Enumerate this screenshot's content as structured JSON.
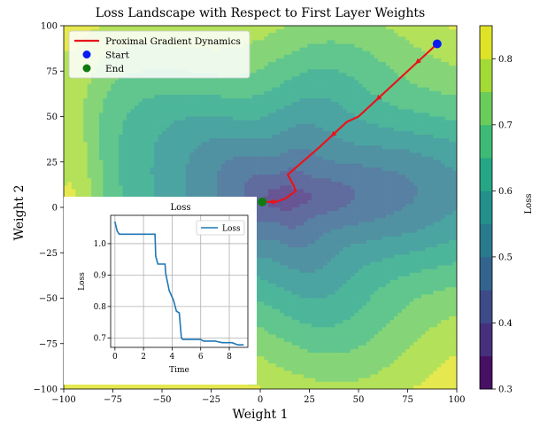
{
  "chart_data": [
    {
      "type": "contour",
      "title": "Loss Landscape with Respect to First Layer Weights",
      "xlabel": "Weight 1",
      "ylabel": "Weight 2",
      "xlim": [
        -100,
        100
      ],
      "ylim": [
        -100,
        100
      ],
      "xticks": [
        -100,
        -75,
        -50,
        -25,
        0,
        25,
        50,
        75,
        100
      ],
      "yticks": [
        -100,
        -75,
        -50,
        -25,
        0,
        25,
        50,
        75,
        100
      ],
      "colorbar": {
        "label": "Loss",
        "range": [
          0.3,
          0.85
        ],
        "ticks": [
          0.3,
          0.4,
          0.5,
          0.6,
          0.7,
          0.8
        ],
        "levels": [
          0.3,
          0.35,
          0.4,
          0.45,
          0.5,
          0.55,
          0.6,
          0.65,
          0.7,
          0.75,
          0.8,
          0.85
        ],
        "colormap": "viridis"
      },
      "minimum_region_center": [
        12,
        5
      ],
      "legend": {
        "placement": "top-left",
        "entries": [
          {
            "label": "Proximal Gradient Dynamics",
            "color": "#e8141b",
            "marker": "line"
          },
          {
            "label": "Start",
            "color": "#0a1cf2",
            "marker": "circle"
          },
          {
            "label": "End",
            "color": "#0f7a12",
            "marker": "circle"
          }
        ]
      },
      "series": [
        {
          "name": "Proximal Gradient Dynamics",
          "x": [
            90,
            70,
            50,
            44,
            30,
            14,
            17,
            18,
            13,
            8,
            4,
            1
          ],
          "y": [
            90,
            70,
            50,
            47,
            33,
            18,
            12,
            9,
            5,
            3,
            3,
            3
          ]
        }
      ],
      "start": {
        "label": "Start",
        "x": 90,
        "y": 90
      },
      "end": {
        "label": "End",
        "x": 1,
        "y": 3
      }
    },
    {
      "type": "line",
      "title": "Loss",
      "xlabel": "Time",
      "ylabel": "Loss",
      "xlim": [
        -0.3,
        9.3
      ],
      "ylim": [
        0.67,
        1.09
      ],
      "xticks": [
        0,
        2,
        4,
        6,
        8
      ],
      "yticks": [
        0.7,
        0.8,
        0.9,
        1.0
      ],
      "grid": true,
      "legend": {
        "placement": "top-right",
        "entries": [
          "Loss"
        ]
      },
      "series": [
        {
          "name": "Loss",
          "x": [
            0,
            0.15,
            0.3,
            2.8,
            2.85,
            3.0,
            3.5,
            3.55,
            3.8,
            4.1,
            4.3,
            4.5,
            4.65,
            4.75,
            5.5,
            6.0,
            6.2,
            7.0,
            7.5,
            8.2,
            8.6,
            9.0
          ],
          "y": [
            1.07,
            1.04,
            1.03,
            1.03,
            0.96,
            0.935,
            0.935,
            0.905,
            0.85,
            0.82,
            0.785,
            0.78,
            0.7,
            0.695,
            0.695,
            0.695,
            0.69,
            0.69,
            0.685,
            0.685,
            0.678,
            0.678
          ]
        }
      ]
    }
  ]
}
